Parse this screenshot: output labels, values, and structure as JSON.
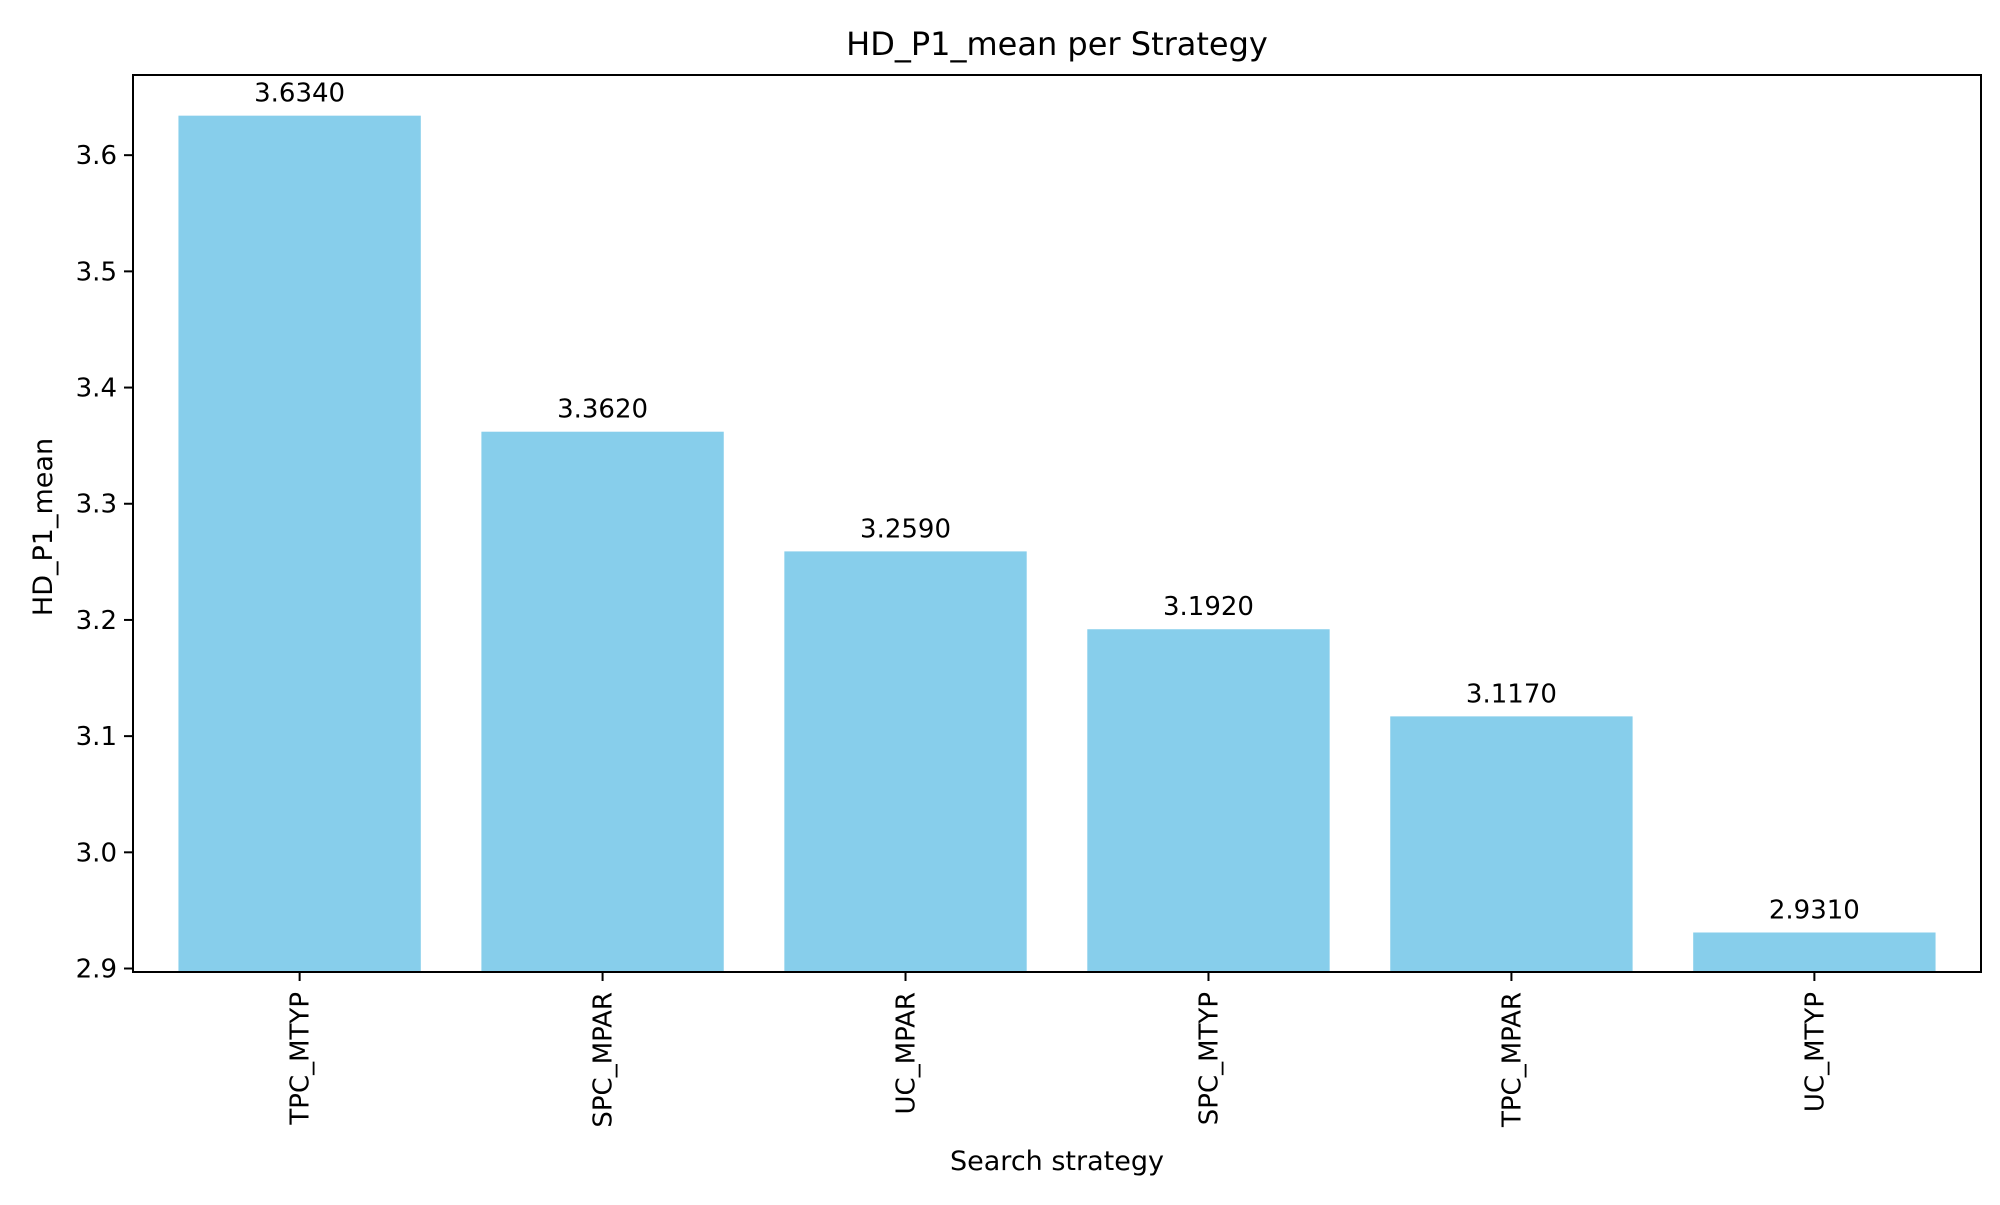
{
  "chart_data": {
    "type": "bar",
    "title": "HD_P1_mean per Strategy",
    "xlabel": "Search strategy",
    "ylabel": "HD_P1_mean",
    "categories": [
      "TPC_MTYP",
      "SPC_MPAR",
      "UC_MPAR",
      "SPC_MTYP",
      "TPC_MPAR",
      "UC_MTYP"
    ],
    "values": [
      3.634,
      3.362,
      3.259,
      3.192,
      3.117,
      2.931
    ],
    "value_labels": [
      "3.6340",
      "3.3620",
      "3.2590",
      "3.1920",
      "3.1170",
      "2.9310"
    ],
    "ylim": [
      2.897,
      3.669
    ],
    "yticks": [
      2.9,
      3.0,
      3.1,
      3.2,
      3.3,
      3.4,
      3.5,
      3.6
    ],
    "ytick_labels": [
      "2.9",
      "3.0",
      "3.1",
      "3.2",
      "3.3",
      "3.4",
      "3.5",
      "3.6"
    ],
    "bar_color": "#87CEEB",
    "grid": false,
    "legend": "none"
  }
}
